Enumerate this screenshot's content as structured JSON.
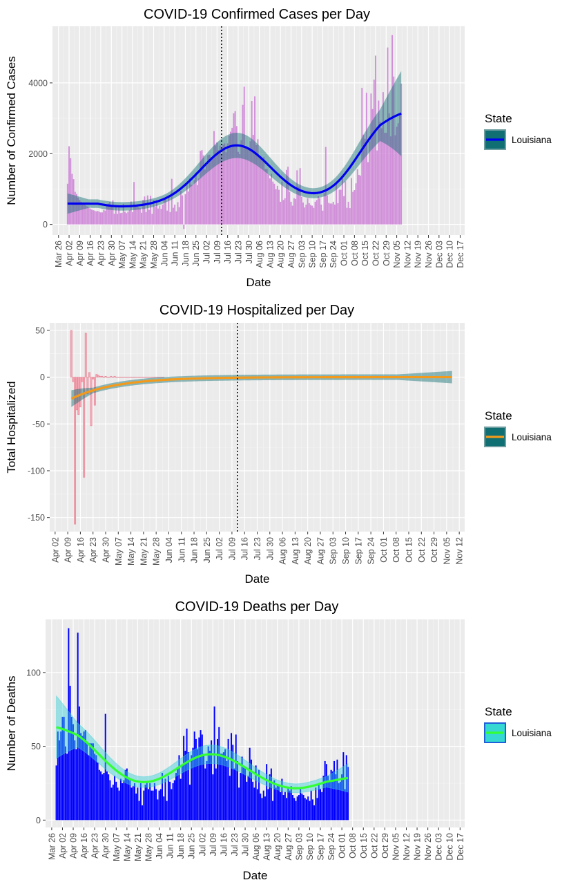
{
  "chart_data": [
    {
      "type": "bar",
      "title": "COVID-19 Confirmed Cases per Day",
      "xlabel": "Date",
      "ylabel": "Number of Confirmed Cases",
      "grid": true,
      "legend_position": "right",
      "legend_title": "State",
      "legend_entries": [
        "Louisiana"
      ],
      "bar_color": "#cc7fd6",
      "smooth_color": "#0000ee",
      "band_color": "#0f6f73",
      "legend_key_fill": "#0f6f73",
      "legend_key_border": "#6f9ea1",
      "panel_background": "#ebebeb",
      "vline_date": "Jul 12",
      "x_ticks": [
        "Mar 26",
        "Apr 02",
        "Apr 09",
        "Apr 16",
        "Apr 23",
        "Apr 30",
        "May 07",
        "May 14",
        "May 21",
        "May 28",
        "Jun 04",
        "Jun 11",
        "Jun 18",
        "Jun 25",
        "Jul 02",
        "Jul 09",
        "Jul 16",
        "Jul 23",
        "Jul 30",
        "Aug 06",
        "Aug 13",
        "Aug 20",
        "Aug 27",
        "Sep 03",
        "Sep 10",
        "Sep 17",
        "Sep 24",
        "Oct 01",
        "Oct 08",
        "Oct 15",
        "Oct 22",
        "Oct 29",
        "Nov 05",
        "Nov 12",
        "Nov 19",
        "Nov 26",
        "Dec 03",
        "Dec 10",
        "Dec 17"
      ],
      "y_ticks": [
        0,
        2000,
        4000
      ],
      "ylim": [
        -300,
        5600
      ],
      "x_start": "Apr 01",
      "smooth_first_value": 590,
      "values": [
        1150,
        2210,
        1870,
        1430,
        1280,
        920,
        860,
        760,
        690,
        640,
        600,
        560,
        540,
        510,
        480,
        450,
        420,
        400,
        390,
        370,
        380,
        360,
        340,
        340,
        410,
        390,
        510,
        590,
        640,
        540,
        680,
        300,
        540,
        300,
        510,
        320,
        330,
        580,
        360,
        320,
        360,
        410,
        650,
        350,
        1200,
        540,
        560,
        480,
        460,
        330,
        690,
        790,
        350,
        820,
        410,
        810,
        300,
        690,
        500,
        690,
        450,
        530,
        440,
        560,
        700,
        760,
        390,
        820,
        350,
        1290,
        470,
        560,
        370,
        630,
        490,
        950,
        820,
        -130,
        860,
        1180,
        930,
        1310,
        1120,
        1120,
        1250,
        1470,
        1110,
        1300,
        2080,
        2100,
        1950,
        1550,
        1670,
        1960,
        1970,
        1900,
        1860,
        2640,
        2230,
        2320,
        2100,
        2230,
        1930,
        2250,
        2290,
        2040,
        2290,
        2510,
        2620,
        2730,
        3140,
        3200,
        2780,
        2050,
        1990,
        2380,
        3380,
        3890,
        2220,
        2180,
        2120,
        2350,
        3490,
        2530,
        3620,
        2240,
        2410,
        1880,
        1930,
        1800,
        1900,
        1570,
        1570,
        1410,
        1300,
        1430,
        1210,
        1150,
        1000,
        1090,
        980,
        640,
        1210,
        690,
        740,
        1540,
        1630,
        920,
        640,
        530,
        740,
        720,
        1530,
        1070,
        1590,
        780,
        620,
        480,
        560,
        740,
        600,
        550,
        530,
        470,
        640,
        690,
        800,
        740,
        560,
        390,
        880,
        2190,
        820,
        610,
        590,
        590,
        640,
        560,
        1190,
        600,
        980,
        980,
        1350,
        800,
        1220,
        470,
        640,
        460,
        1310,
        920,
        970,
        1160,
        1560,
        1400,
        1380,
        3860,
        2540,
        2420,
        3720,
        1760,
        2350,
        3700,
        3260,
        4090,
        4770,
        2090,
        3500,
        2900,
        2720,
        3740,
        2590,
        2590,
        5000,
        3140,
        2490,
        5350,
        4180,
        2520,
        2760,
        2860,
        3130,
        3980
      ]
    },
    {
      "type": "bar",
      "title": "COVID-19 Hospitalized per Day",
      "xlabel": "Date",
      "ylabel": "Total Hospitalized",
      "grid": true,
      "legend_position": "right",
      "legend_title": "State",
      "legend_entries": [
        "Louisiana"
      ],
      "bar_color": "#f4a7b4",
      "smooth_color": "#f39a1c",
      "band_color": "#0f6f73",
      "legend_key_fill": "#0f6f73",
      "legend_key_border": "#6f9ea1",
      "panel_background": "#ebebeb",
      "vline_date": "Jul 12",
      "x_ticks": [
        "Apr 02",
        "Apr 09",
        "Apr 16",
        "Apr 23",
        "Apr 30",
        "May 07",
        "May 14",
        "May 21",
        "May 28",
        "Jun 04",
        "Jun 11",
        "Jun 18",
        "Jun 25",
        "Jul 02",
        "Jul 09",
        "Jul 16",
        "Jul 23",
        "Jul 30",
        "Aug 06",
        "Aug 13",
        "Aug 20",
        "Aug 27",
        "Sep 03",
        "Sep 10",
        "Sep 17",
        "Sep 24",
        "Oct 01",
        "Oct 08",
        "Oct 15",
        "Oct 22",
        "Oct 29",
        "Nov 05",
        "Nov 12"
      ],
      "y_ticks": [
        -150,
        -100,
        -50,
        0,
        50
      ],
      "ylim": [
        -165,
        58
      ],
      "x_start": "Apr 11",
      "smooth_start": "Apr 11",
      "smooth_end": "Nov 08",
      "values": [
        50,
        -5,
        -157,
        -35,
        -40,
        -32,
        -5,
        -107,
        47,
        -18,
        5,
        -52,
        -2,
        -30,
        3,
        2,
        1,
        1,
        0,
        1,
        0,
        0,
        1,
        0,
        1,
        0,
        0,
        0,
        0,
        0,
        0,
        0,
        0,
        0,
        0,
        0,
        0,
        0,
        0,
        0,
        0,
        0,
        0,
        0,
        0,
        0,
        0,
        0,
        0,
        0,
        0,
        0
      ]
    },
    {
      "type": "bar",
      "title": "COVID-19 Deaths per Day",
      "xlabel": "Date",
      "ylabel": "Number of Deaths",
      "grid": true,
      "legend_position": "right",
      "legend_title": "State",
      "legend_entries": [
        "Louisiana"
      ],
      "bar_color": "#0000ff",
      "smooth_color": "#33ff33",
      "band_color": "#36cfd6",
      "legend_key_fill": "#36d9d2",
      "legend_key_border": "#1f5fd8",
      "panel_background": "#ebebeb",
      "x_ticks": [
        "Mar 26",
        "Apr 02",
        "Apr 09",
        "Apr 16",
        "Apr 23",
        "Apr 30",
        "May 07",
        "May 14",
        "May 21",
        "May 28",
        "Jun 04",
        "Jun 11",
        "Jun 18",
        "Jun 25",
        "Jul 02",
        "Jul 09",
        "Jul 16",
        "Jul 23",
        "Jul 30",
        "Aug 06",
        "Aug 13",
        "Aug 20",
        "Aug 27",
        "Sep 03",
        "Sep 10",
        "Sep 17",
        "Sep 24",
        "Oct 01",
        "Oct 08",
        "Oct 15",
        "Oct 22",
        "Oct 29",
        "Nov 05",
        "Nov 12",
        "Nov 19",
        "Nov 26",
        "Dec 03",
        "Dec 10",
        "Dec 17"
      ],
      "y_ticks": [
        0,
        50,
        100
      ],
      "ylim": [
        -5,
        136
      ],
      "x_start": "Mar 29",
      "values": [
        37,
        60,
        54,
        60,
        70,
        70,
        50,
        45,
        130,
        91,
        70,
        65,
        54,
        48,
        127,
        77,
        59,
        57,
        60,
        61,
        53,
        44,
        52,
        52,
        52,
        45,
        44,
        39,
        34,
        33,
        31,
        32,
        72,
        33,
        31,
        27,
        22,
        24,
        30,
        26,
        22,
        20,
        28,
        25,
        27,
        34,
        35,
        28,
        27,
        22,
        23,
        25,
        18,
        22,
        13,
        25,
        10,
        20,
        24,
        26,
        21,
        25,
        20,
        20,
        25,
        21,
        14,
        20,
        21,
        32,
        16,
        28,
        13,
        30,
        26,
        21,
        25,
        27,
        32,
        36,
        44,
        28,
        37,
        57,
        47,
        62,
        46,
        24,
        44,
        49,
        60,
        55,
        48,
        56,
        61,
        58,
        45,
        35,
        40,
        50,
        47,
        54,
        31,
        77,
        35,
        55,
        63,
        45,
        45,
        46,
        48,
        40,
        55,
        30,
        59,
        51,
        35,
        58,
        40,
        22,
        32,
        43,
        37,
        36,
        26,
        30,
        49,
        41,
        26,
        22,
        37,
        21,
        34,
        18,
        15,
        20,
        16,
        38,
        21,
        31,
        35,
        13,
        27,
        22,
        24,
        23,
        19,
        28,
        17,
        19,
        15,
        22,
        20,
        23,
        17,
        15,
        13,
        16,
        17,
        22,
        18,
        17,
        15,
        14,
        16,
        13,
        20,
        14,
        10,
        22,
        15,
        24,
        21,
        19,
        30,
        40,
        38,
        30,
        27,
        34,
        33,
        40,
        31,
        41,
        25,
        26,
        31,
        46,
        21,
        44,
        36
      ]
    }
  ]
}
